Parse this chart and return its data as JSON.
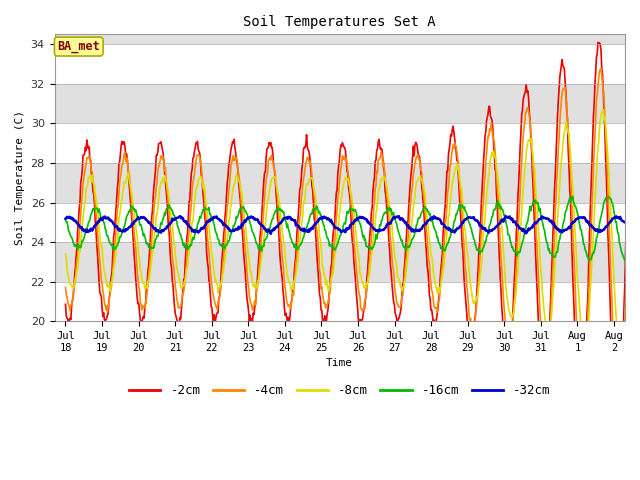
{
  "title": "Soil Temperatures Set A",
  "xlabel": "Time",
  "ylabel": "Soil Temperature (C)",
  "ylim": [
    20,
    34.5
  ],
  "yticks": [
    20,
    22,
    24,
    26,
    28,
    30,
    32,
    34
  ],
  "background_color": "#ffffff",
  "plot_bg_color": "#e0e0e0",
  "annotation_text": "BA_met",
  "annotation_bg": "#ffff99",
  "annotation_border": "#aaaa00",
  "annotation_text_color": "#880000",
  "series": [
    {
      "label": "-2cm",
      "color": "#ee0000",
      "linewidth": 1.2
    },
    {
      "label": "-4cm",
      "color": "#ff8800",
      "linewidth": 1.2
    },
    {
      "label": "-8cm",
      "color": "#dddd00",
      "linewidth": 1.2
    },
    {
      "label": "-16cm",
      "color": "#00bb00",
      "linewidth": 1.2
    },
    {
      "label": "-32cm",
      "color": "#0000cc",
      "linewidth": 1.8
    }
  ],
  "x_tick_labels": [
    "Jul\n18",
    "Jul\n19",
    "Jul\n20",
    "Jul\n21",
    "Jul\n22",
    "Jul\n23",
    "Jul\n24",
    "Jul\n25",
    "Jul\n26",
    "Jul\n27",
    "Jul\n28",
    "Jul\n29",
    "Jul\n30",
    "Jul\n31",
    "Aug\n1",
    "Aug\n2"
  ],
  "n_days": 16,
  "pts_per_day": 48,
  "base_temp": 24.5,
  "legend_ncol": 5,
  "font_family": "monospace"
}
